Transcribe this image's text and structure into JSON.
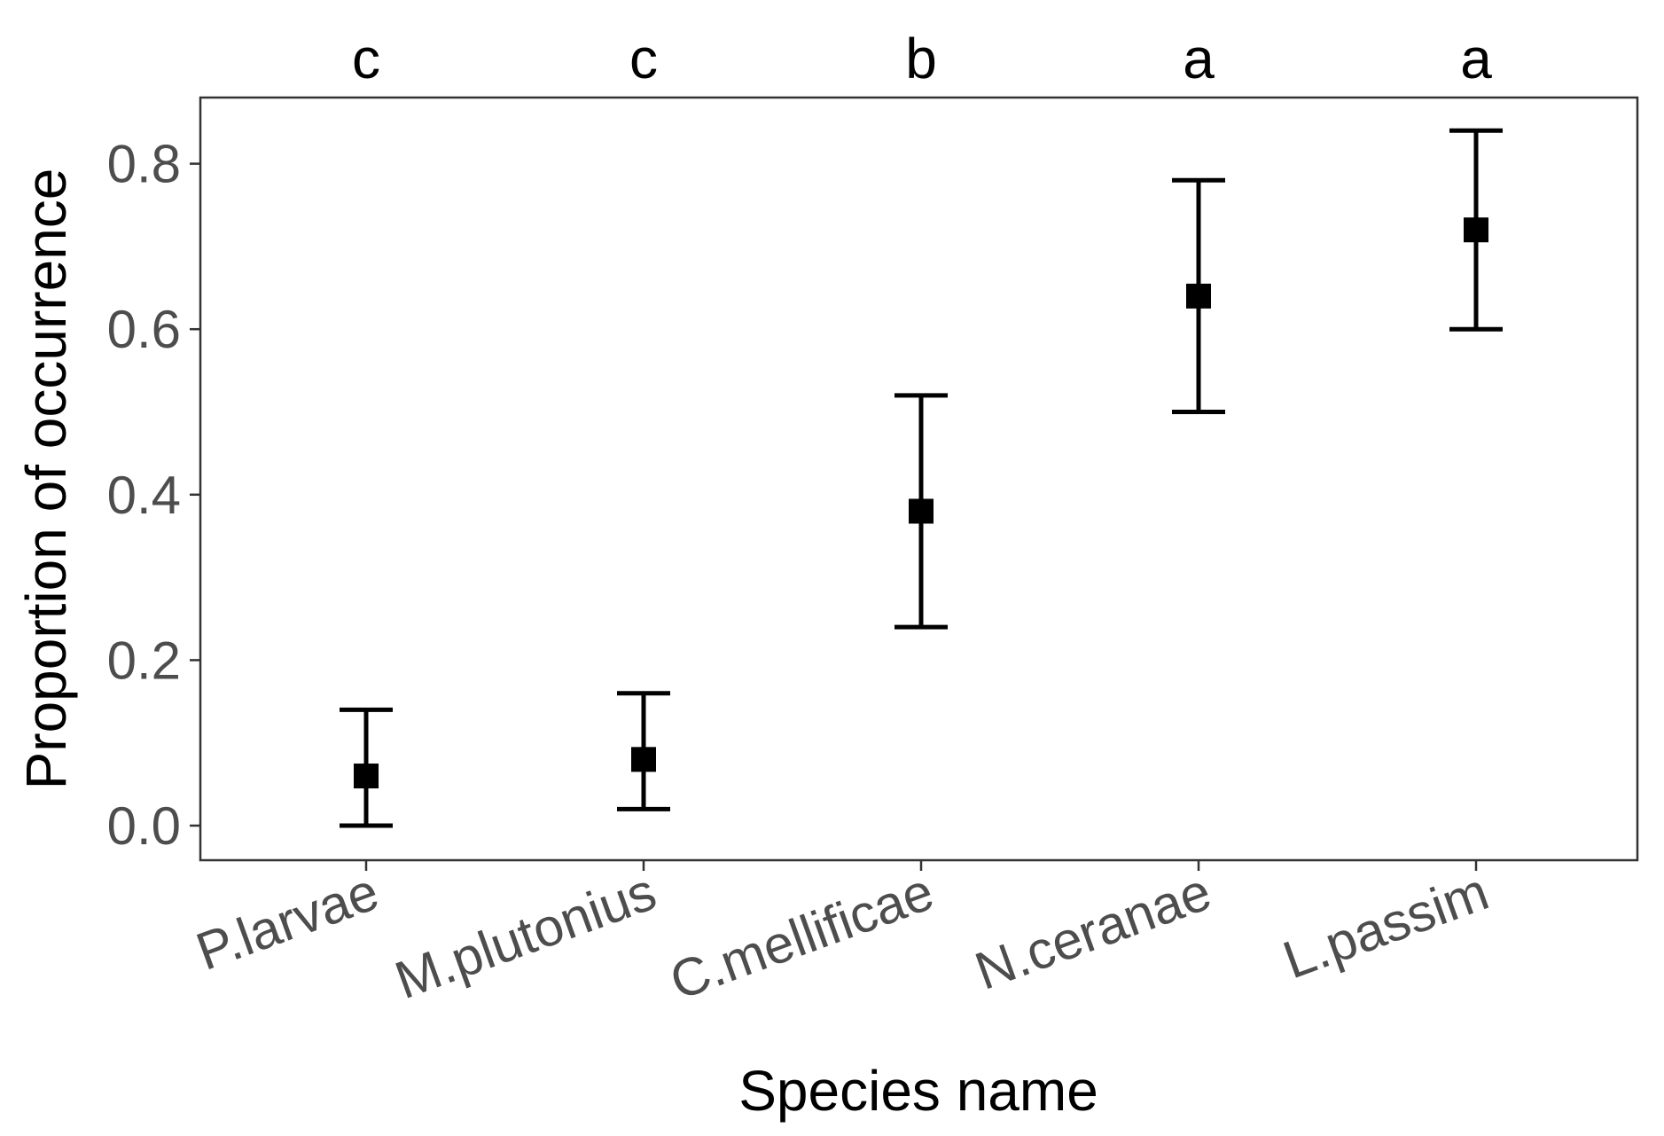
{
  "chart_data": {
    "type": "scatter",
    "error_bars": true,
    "title": "",
    "xlabel": "Species name",
    "ylabel": "Proportion of occurrence",
    "categories": [
      "P.larvae",
      "M.plutonius",
      "C.mellificae",
      "N.ceranae",
      "L.passim"
    ],
    "values": [
      0.06,
      0.08,
      0.38,
      0.64,
      0.72
    ],
    "lower": [
      0.0,
      0.02,
      0.24,
      0.5,
      0.6
    ],
    "upper": [
      0.14,
      0.16,
      0.52,
      0.78,
      0.84
    ],
    "group_letters": [
      "c",
      "c",
      "b",
      "a",
      "a"
    ],
    "ylim": [
      -0.05,
      0.88
    ],
    "y_ticks": [
      0.0,
      0.2,
      0.4,
      0.6,
      0.8
    ],
    "y_tick_labels": [
      "0.0",
      "0.2",
      "0.4",
      "0.6",
      "0.8"
    ],
    "grid": false,
    "legend": "none",
    "colors": {
      "marks": "#000000",
      "tick_labels": "#4d4d4d",
      "background": "#ffffff"
    }
  }
}
